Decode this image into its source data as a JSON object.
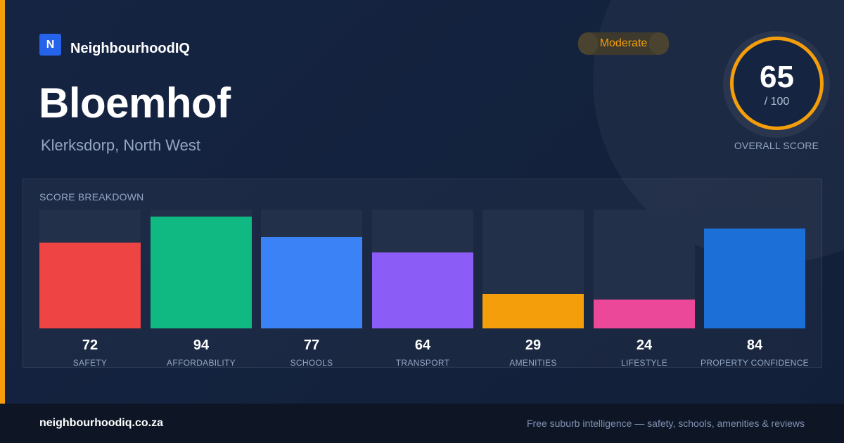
{
  "brand": {
    "logo_letter": "N",
    "name": "NeighbourhoodIQ",
    "logo_color": "#2563eb",
    "accent_color": "#f59e0b"
  },
  "suburb": {
    "name": "Bloemhof",
    "location": "Klerksdorp, North West"
  },
  "rating": {
    "label": "Moderate",
    "color": "#f59e0b"
  },
  "overall": {
    "score": "65",
    "max_label": "/ 100",
    "caption": "OVERALL SCORE",
    "ring_color": "#f59e0b"
  },
  "breakdown": {
    "title": "SCORE BREAKDOWN",
    "max": 100,
    "items": [
      {
        "value": 72,
        "label": "SAFETY",
        "color": "#ef4444"
      },
      {
        "value": 94,
        "label": "AFFORDABILITY",
        "color": "#10b981"
      },
      {
        "value": 77,
        "label": "SCHOOLS",
        "color": "#3b82f6"
      },
      {
        "value": 64,
        "label": "TRANSPORT",
        "color": "#8b5cf6"
      },
      {
        "value": 29,
        "label": "AMENITIES",
        "color": "#f59e0b"
      },
      {
        "value": 24,
        "label": "LIFESTYLE",
        "color": "#ec4899"
      },
      {
        "value": 84,
        "label": "PROPERTY CONFIDENCE",
        "color": "#1d6fd8"
      }
    ]
  },
  "footer": {
    "domain": "neighbourhoodiq.co.za",
    "tagline": "Free suburb intelligence — safety, schools, amenities & reviews"
  }
}
